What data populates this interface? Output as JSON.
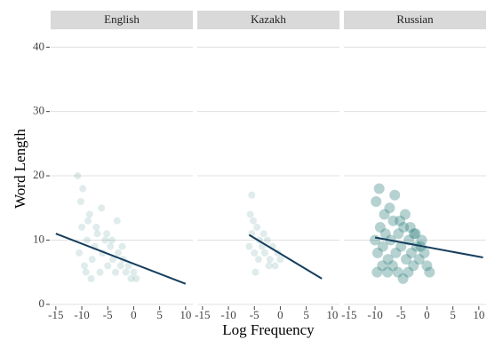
{
  "chart_data": {
    "type": "scatter",
    "x_label": "Log Frequency",
    "y_label": "Word Length",
    "xlim": [
      -16,
      11.4
    ],
    "ylim": [
      -0.3,
      42.8
    ],
    "xticks": [
      -15,
      -10,
      -5,
      0,
      5,
      10
    ],
    "yticks": [
      0,
      10,
      20,
      30,
      40
    ],
    "grid": true,
    "facets": [
      {
        "title": "English",
        "color": "#2a7f7a",
        "line_color": "#153e5e",
        "x": [
          -10.5,
          -10,
          -9.5,
          -9,
          -8.5,
          -8,
          -7.5,
          -7,
          -6.5,
          -6,
          -5.5,
          -5,
          -4.5,
          -4,
          -3.5,
          -3,
          -2.5,
          -2,
          -1.5,
          -1,
          -0.5,
          0,
          0.5,
          -10.2,
          -9.8,
          -8.8,
          -7.2,
          -6.2,
          -5.2,
          -4.2,
          -3.2,
          -2.2,
          -10.8,
          -9.2,
          -8.2
        ],
        "y": [
          8,
          12,
          6,
          10,
          14,
          7,
          9,
          11,
          5,
          8,
          10,
          6,
          9,
          7,
          5,
          8,
          6,
          7,
          5,
          6,
          4,
          5,
          4,
          16,
          18,
          13,
          12,
          15,
          11,
          10,
          13,
          9,
          20,
          5,
          4
        ],
        "fit_x": [
          -15,
          10
        ],
        "fit_y": [
          11,
          3.2
        ]
      },
      {
        "title": "Kazakh",
        "color": "#2a7f7a",
        "line_color": "#153e5e",
        "x": [
          -6,
          -5.5,
          -5,
          -4.5,
          -4,
          -3.5,
          -3,
          -2.5,
          -2,
          -1.5,
          -1,
          -0.5,
          0,
          -5.8,
          -5.2,
          -4.2,
          -3.2,
          -2.2,
          -5.5,
          -4.8
        ],
        "y": [
          9,
          11,
          8,
          12,
          10,
          9,
          8,
          10,
          7,
          9,
          6,
          8,
          7,
          14,
          13,
          7,
          11,
          6,
          17,
          5
        ],
        "fit_x": [
          -6,
          8
        ],
        "fit_y": [
          10.8,
          4
        ]
      },
      {
        "title": "Russian",
        "color": "#2a7f7a",
        "line_color": "#153e5e",
        "x": [
          -10,
          -9.5,
          -9,
          -8.5,
          -8,
          -7.5,
          -7,
          -6.5,
          -6,
          -5.5,
          -5,
          -4.5,
          -4,
          -3.5,
          -3,
          -2.5,
          -2,
          -1.5,
          -1,
          -0.5,
          0,
          0.5,
          -9.8,
          -9.2,
          -8.2,
          -7.2,
          -6.2,
          -5.2,
          -4.2,
          -3.2,
          -2.2,
          -1.2,
          -9.6,
          -8.6,
          -7.6,
          -6.6,
          -5.6,
          -4.6,
          -3.6,
          -2.6
        ],
        "y": [
          10,
          8,
          12,
          9,
          11,
          7,
          10,
          13,
          8,
          11,
          9,
          12,
          7,
          10,
          8,
          11,
          9,
          7,
          10,
          8,
          6,
          5,
          16,
          18,
          14,
          15,
          17,
          13,
          14,
          12,
          11,
          9,
          5,
          6,
          5,
          6,
          5,
          4,
          5,
          6
        ],
        "fit_x": [
          -10,
          10.8
        ],
        "fit_y": [
          10.4,
          7.3
        ]
      }
    ]
  }
}
